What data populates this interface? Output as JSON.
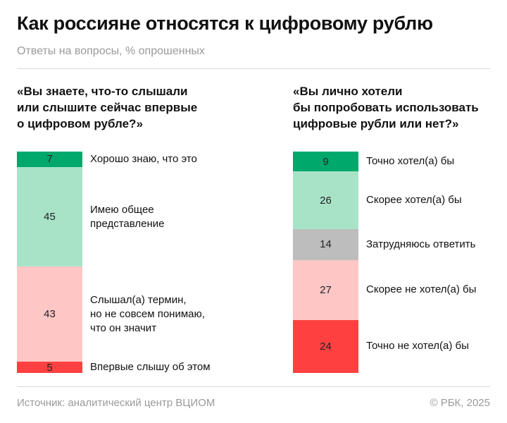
{
  "title": "Как россияне относятся к цифровому рублю",
  "subtitle": "Ответы на вопросы, % опрошенных",
  "source": "Источник: аналитический центр ВЦИОМ",
  "copyright": "© РБК, 2025",
  "chart_data": [
    {
      "type": "bar",
      "stacked": true,
      "title": "«Вы знаете, что-то слышали или слышите сейчас впервые о цифровом рубле?»",
      "categories": [
        "Хорошо знаю, что это",
        "Имею общее представление",
        "Слышал(а) термин, но не совсем понимаю, что он значит",
        "Впервые слышу об этом"
      ],
      "values": [
        7,
        45,
        43,
        5
      ],
      "colors": [
        "#00a86b",
        "#a8e3c8",
        "#ffc6c6",
        "#ff4040"
      ]
    },
    {
      "type": "bar",
      "stacked": true,
      "title": "«Вы лично хотели бы попробовать использовать цифровые рубли или нет?»",
      "categories": [
        "Точно хотел(а) бы",
        "Скорее хотел(а) бы",
        "Затрудняюсь ответить",
        "Скорее не хотел(а) бы",
        "Точно не хотел(а) бы"
      ],
      "values": [
        9,
        26,
        14,
        27,
        24
      ],
      "colors": [
        "#00a86b",
        "#a8e3c8",
        "#bdbdbd",
        "#ffc6c6",
        "#ff4040"
      ]
    }
  ]
}
